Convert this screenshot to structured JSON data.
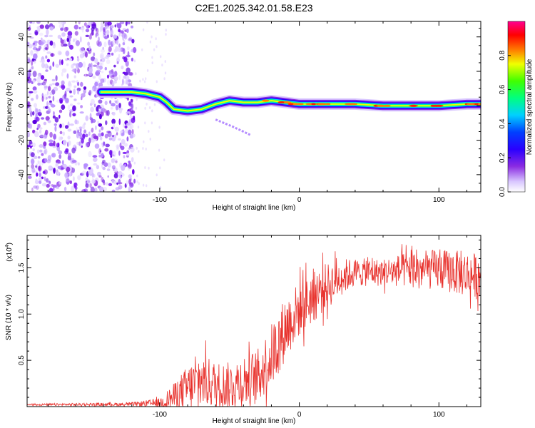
{
  "chart_data": [
    {
      "type": "heatmap",
      "title": "C2E1.2025.342.01.58.E23",
      "xlabel": "Height of straight line (km)",
      "ylabel": "Frequency (Hz)",
      "xlim": [
        -195,
        130
      ],
      "ylim": [
        -50,
        49
      ],
      "x_ticks": [
        -100,
        0,
        100
      ],
      "x_tick_labels": [
        "-100",
        "0",
        "100"
      ],
      "y_ticks": [
        -40,
        -20,
        0,
        20,
        40
      ],
      "y_tick_labels": [
        "-40",
        "-20",
        "0",
        "20",
        "40"
      ],
      "colorbar": {
        "label": "Normalized spectral amplitude",
        "range": [
          0,
          1
        ],
        "ticks": [
          0.0,
          0.2,
          0.4,
          0.6,
          0.8
        ],
        "tick_labels": [
          "0.0",
          "0.2",
          "0.4",
          "0.6",
          "0.8"
        ]
      },
      "noise_region_km": [
        -195,
        -118
      ],
      "ridge": [
        {
          "x": -142,
          "y": 8
        },
        {
          "x": -130,
          "y": 8
        },
        {
          "x": -120,
          "y": 8
        },
        {
          "x": -110,
          "y": 7
        },
        {
          "x": -100,
          "y": 5
        },
        {
          "x": -95,
          "y": 2
        },
        {
          "x": -90,
          "y": -2
        },
        {
          "x": -80,
          "y": -3
        },
        {
          "x": -70,
          "y": -2
        },
        {
          "x": -60,
          "y": 1
        },
        {
          "x": -50,
          "y": 3
        },
        {
          "x": -40,
          "y": 2
        },
        {
          "x": -30,
          "y": 2
        },
        {
          "x": -20,
          "y": 3
        },
        {
          "x": -10,
          "y": 2
        },
        {
          "x": 0,
          "y": 1
        },
        {
          "x": 10,
          "y": 1
        },
        {
          "x": 20,
          "y": 1
        },
        {
          "x": 40,
          "y": 1
        },
        {
          "x": 60,
          "y": 0
        },
        {
          "x": 80,
          "y": 0
        },
        {
          "x": 100,
          "y": 0
        },
        {
          "x": 120,
          "y": 1
        },
        {
          "x": 130,
          "y": 1
        }
      ],
      "branch": [
        {
          "x": -60,
          "y": -8
        },
        {
          "x": -48,
          "y": -12
        },
        {
          "x": -40,
          "y": -15
        },
        {
          "x": -35,
          "y": -17
        }
      ]
    },
    {
      "type": "line",
      "title": "",
      "xlabel": "Height of straight line (km)",
      "ylabel": "SNR (10 * v/v)",
      "y_scale_label_base": "(x10",
      "y_scale_label_exp": "4",
      "y_scale_label_close": ")",
      "xlim": [
        -195,
        130
      ],
      "ylim": [
        0,
        18500
      ],
      "x_ticks": [
        -100,
        0,
        100
      ],
      "x_tick_labels": [
        "-100",
        "0",
        "100"
      ],
      "y_ticks": [
        5000,
        10000,
        15000
      ],
      "y_tick_labels": [
        "0.5",
        "1.0",
        "1.5"
      ],
      "series": [
        {
          "name": "SNR",
          "color": "#e8322d",
          "envelope": [
            {
              "x": -195,
              "base": 200,
              "amp": 100
            },
            {
              "x": -120,
              "base": 250,
              "amp": 200
            },
            {
              "x": -100,
              "base": 400,
              "amp": 500
            },
            {
              "x": -90,
              "base": 1000,
              "amp": 1500
            },
            {
              "x": -80,
              "base": 2000,
              "amp": 2500
            },
            {
              "x": -70,
              "base": 2800,
              "amp": 3000
            },
            {
              "x": -60,
              "base": 2400,
              "amp": 2500
            },
            {
              "x": -50,
              "base": 2200,
              "amp": 2600
            },
            {
              "x": -40,
              "base": 2800,
              "amp": 3000
            },
            {
              "x": -30,
              "base": 3200,
              "amp": 3000
            },
            {
              "x": -20,
              "base": 5500,
              "amp": 3500
            },
            {
              "x": -10,
              "base": 8500,
              "amp": 3500
            },
            {
              "x": 0,
              "base": 10500,
              "amp": 3000
            },
            {
              "x": 10,
              "base": 12000,
              "amp": 3000
            },
            {
              "x": 20,
              "base": 13000,
              "amp": 2500
            },
            {
              "x": 30,
              "base": 14000,
              "amp": 2000
            },
            {
              "x": 40,
              "base": 14500,
              "amp": 1500
            },
            {
              "x": 60,
              "base": 14500,
              "amp": 1500
            },
            {
              "x": 80,
              "base": 14800,
              "amp": 2000
            },
            {
              "x": 100,
              "base": 14800,
              "amp": 2200
            },
            {
              "x": 120,
              "base": 14300,
              "amp": 2500
            },
            {
              "x": 130,
              "base": 14000,
              "amp": 2500
            }
          ]
        }
      ]
    }
  ]
}
